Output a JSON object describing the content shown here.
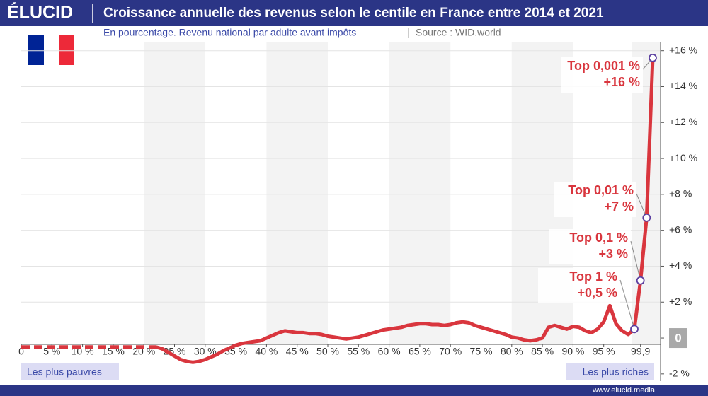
{
  "header": {
    "logo": "ÉLUCID",
    "footer": "www.elucid.media"
  },
  "chart_data": {
    "type": "line",
    "title": "Croissance annuelle des revenus selon le centile en France entre 2014 et 2021",
    "subtitle": "En pourcentage. Revenu national par adulte avant impôts",
    "source": "Source : WID.world",
    "left_note": "Les plus pauvres",
    "right_note": "Les plus riches",
    "categories": [
      "0",
      null,
      null,
      null,
      null,
      "5 %",
      null,
      null,
      null,
      null,
      "10 %",
      null,
      null,
      null,
      null,
      "15 %",
      null,
      null,
      null,
      null,
      "20 %",
      null,
      null,
      null,
      null,
      "25 %",
      null,
      null,
      null,
      null,
      "30 %",
      null,
      null,
      null,
      null,
      "35 %",
      null,
      null,
      null,
      null,
      "40 %",
      null,
      null,
      null,
      null,
      "45 %",
      null,
      null,
      null,
      null,
      "50 %",
      null,
      null,
      null,
      null,
      "55 %",
      null,
      null,
      null,
      null,
      "60 %",
      null,
      null,
      null,
      null,
      "65 %",
      null,
      null,
      null,
      null,
      "70 %",
      null,
      null,
      null,
      null,
      "75 %",
      null,
      null,
      null,
      null,
      "80 %",
      null,
      null,
      null,
      null,
      "85 %",
      null,
      null,
      null,
      null,
      "90 %",
      null,
      null,
      null,
      null,
      "95 %",
      null,
      null,
      null,
      null,
      null,
      "99,9",
      null,
      null
    ],
    "series": [
      {
        "color": "#d9363e",
        "dashed": true,
        "values": [
          -0.5,
          -0.5,
          -0.5,
          -0.5,
          -0.5,
          -0.5,
          -0.5,
          -0.5,
          -0.5,
          -0.5,
          -0.5,
          -0.5,
          -0.5,
          -0.5,
          -0.5,
          -0.5,
          -0.5,
          -0.5,
          -0.5,
          -0.5,
          -0.5,
          -0.5,
          -0.5,
          null,
          null,
          null,
          null,
          null,
          null,
          null,
          null,
          null,
          null,
          null,
          null,
          null,
          null,
          null,
          null,
          null,
          null,
          null,
          null,
          null,
          null,
          null,
          null,
          null,
          null,
          null,
          null,
          null,
          null,
          null,
          null,
          null,
          null,
          null,
          null,
          null,
          null,
          null,
          null,
          null,
          null,
          null,
          null,
          null,
          null,
          null,
          null,
          null,
          null,
          null,
          null,
          null,
          null,
          null,
          null,
          null,
          null,
          null,
          null,
          null,
          null,
          null,
          null,
          null,
          null,
          null,
          null,
          null,
          null,
          null,
          null,
          null,
          null,
          null,
          null,
          null,
          null,
          null,
          null,
          null
        ]
      },
      {
        "color": "#d9363e",
        "dashed": false,
        "values": [
          null,
          null,
          null,
          null,
          null,
          null,
          null,
          null,
          null,
          null,
          null,
          null,
          null,
          null,
          null,
          null,
          null,
          null,
          null,
          null,
          null,
          null,
          -0.5,
          -0.6,
          -0.8,
          -1.0,
          -1.2,
          -1.3,
          -1.35,
          -1.3,
          -1.2,
          -1.05,
          -0.9,
          -0.7,
          -0.55,
          -0.4,
          -0.3,
          -0.25,
          -0.2,
          -0.15,
          0.0,
          0.15,
          0.3,
          0.4,
          0.35,
          0.3,
          0.3,
          0.25,
          0.25,
          0.2,
          0.1,
          0.05,
          0.0,
          -0.05,
          0.0,
          0.05,
          0.15,
          0.25,
          0.35,
          0.45,
          0.5,
          0.55,
          0.6,
          0.7,
          0.75,
          0.8,
          0.8,
          0.75,
          0.75,
          0.7,
          0.75,
          0.85,
          0.9,
          0.85,
          0.7,
          0.6,
          0.5,
          0.4,
          0.3,
          0.2,
          0.05,
          0.0,
          -0.1,
          -0.15,
          -0.1,
          0.0,
          0.6,
          0.7,
          0.6,
          0.5,
          0.65,
          0.6,
          0.4,
          0.3,
          0.5,
          0.9,
          1.8,
          0.8,
          0.4,
          0.2,
          0.5,
          3.2,
          6.7,
          15.6
        ],
        "point_labels": [
          null,
          null,
          null,
          null,
          null,
          null,
          null,
          null,
          null,
          null,
          null,
          null,
          null,
          null,
          null,
          null,
          null,
          null,
          null,
          null,
          null,
          null,
          null,
          null,
          null,
          null,
          null,
          null,
          null,
          null,
          null,
          null,
          null,
          null,
          null,
          null,
          null,
          null,
          null,
          null,
          null,
          null,
          null,
          null,
          null,
          null,
          null,
          null,
          null,
          null,
          null,
          null,
          null,
          null,
          null,
          null,
          null,
          null,
          null,
          null,
          null,
          null,
          null,
          null,
          null,
          null,
          null,
          null,
          null,
          null,
          null,
          null,
          null,
          null,
          null,
          null,
          null,
          null,
          null,
          null,
          null,
          null,
          null,
          null,
          null,
          null,
          null,
          null,
          null,
          null,
          null,
          null,
          null,
          null,
          null,
          null,
          null,
          null,
          null,
          null,
          "Top 1 %",
          "Top 0,1 %",
          "Top 0,01 %",
          "Top 0,001 %"
        ],
        "value_labels": [
          null,
          null,
          null,
          null,
          null,
          null,
          null,
          null,
          null,
          null,
          null,
          null,
          null,
          null,
          null,
          null,
          null,
          null,
          null,
          null,
          null,
          null,
          null,
          null,
          null,
          null,
          null,
          null,
          null,
          null,
          null,
          null,
          null,
          null,
          null,
          null,
          null,
          null,
          null,
          null,
          null,
          null,
          null,
          null,
          null,
          null,
          null,
          null,
          null,
          null,
          null,
          null,
          null,
          null,
          null,
          null,
          null,
          null,
          null,
          null,
          null,
          null,
          null,
          null,
          null,
          null,
          null,
          null,
          null,
          null,
          null,
          null,
          null,
          null,
          null,
          null,
          null,
          null,
          null,
          null,
          null,
          null,
          null,
          null,
          null,
          null,
          null,
          null,
          null,
          null,
          null,
          null,
          null,
          null,
          null,
          null,
          null,
          null,
          null,
          null,
          "+0,5 %",
          "+3 %",
          "+7 %",
          "+16 %"
        ]
      }
    ],
    "ylim": [
      -2.4,
      16.5
    ],
    "yticks": [
      {
        "value": -2,
        "label": "-2 %"
      },
      {
        "value": 0,
        "label": "0"
      },
      {
        "value": 2,
        "label": "+2 %"
      },
      {
        "value": 4,
        "label": "+4 %"
      },
      {
        "value": 6,
        "label": "+6 %"
      },
      {
        "value": 8,
        "label": "+8 %"
      },
      {
        "value": 10,
        "label": "+10 %"
      },
      {
        "value": 12,
        "label": "+12 %"
      },
      {
        "value": 14,
        "label": "+14 %"
      },
      {
        "value": 16,
        "label": "+16 %"
      }
    ],
    "grid": true
  }
}
